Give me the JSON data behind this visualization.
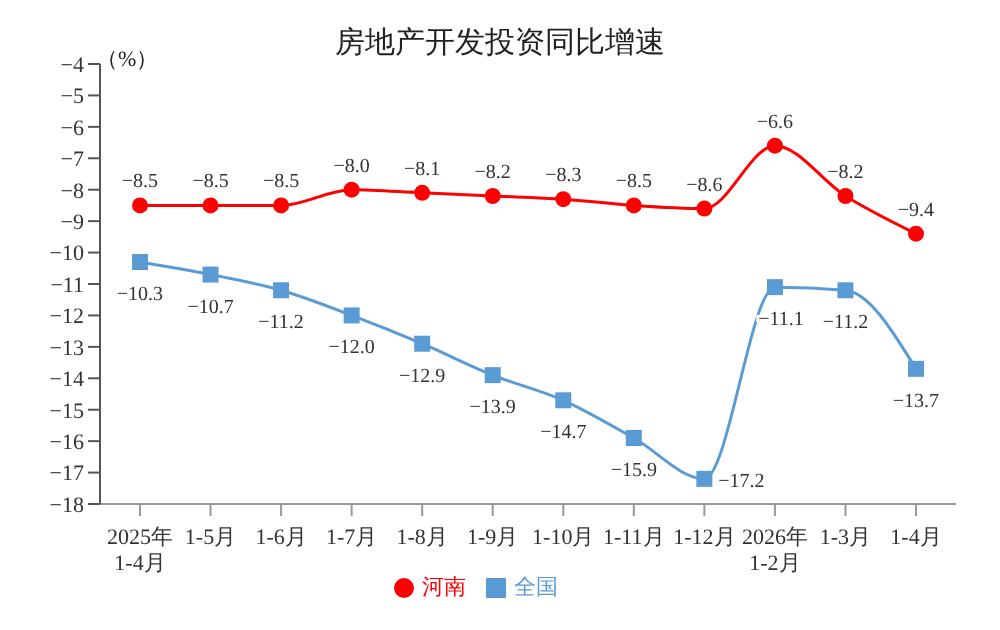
{
  "chart_data": {
    "type": "line",
    "title": "房地产开发投资同比增速",
    "ylabel": "（%）",
    "categories": [
      "2025年\n1-4月",
      "1-5月",
      "1-6月",
      "1-7月",
      "1-8月",
      "1-9月",
      "1-10月",
      "1-11月",
      "1-12月",
      "2026年\n1-2月",
      "1-3月",
      "1-4月"
    ],
    "series": [
      {
        "name": "河南",
        "color": "#ff0000",
        "marker": "circle",
        "values": [
          -8.5,
          -8.5,
          -8.5,
          -8.0,
          -8.1,
          -8.2,
          -8.3,
          -8.5,
          -8.6,
          -6.6,
          -8.2,
          -9.4
        ],
        "value_labels": [
          "−8.5",
          "−8.5",
          "−8.5",
          "−8.0",
          "−8.1",
          "−8.2",
          "−8.3",
          "−8.5",
          "−8.6",
          "−6.6",
          "−8.2",
          "−9.4"
        ]
      },
      {
        "name": "全国",
        "color": "#5b9bd5",
        "marker": "square",
        "values": [
          -10.3,
          -10.7,
          -11.2,
          -12.0,
          -12.9,
          -13.9,
          -14.7,
          -15.9,
          -17.2,
          -11.1,
          -11.2,
          -13.7
        ],
        "value_labels": [
          "−10.3",
          "−10.7",
          "−11.2",
          "−12.0",
          "−12.9",
          "−13.9",
          "−14.7",
          "−15.9",
          "−17.2",
          "−11.1",
          "−11.2",
          "−13.7"
        ]
      }
    ],
    "ylim": [
      -18,
      -4
    ],
    "yticks": [
      -18,
      -17,
      -16,
      -15,
      -14,
      -13,
      -12,
      -11,
      -10,
      -9,
      -8,
      -7,
      -6,
      -5,
      -4
    ],
    "grid": false,
    "legend": "bottom",
    "line_style": "solid"
  }
}
